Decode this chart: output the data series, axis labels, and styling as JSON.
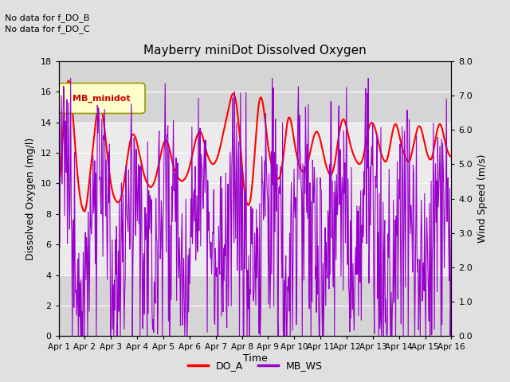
{
  "title": "Mayberry miniDot Dissolved Oxygen",
  "xlabel": "Time",
  "ylabel_left": "Dissolved Oxygen (mg/l)",
  "ylabel_right": "Wind Speed (m/s)",
  "annotation_lines": [
    "No data for f_DO_B",
    "No data for f_DO_C"
  ],
  "legend_label": "MB_minidot",
  "x_tick_labels": [
    "Apr 1",
    "Apr 2",
    "Apr 3",
    "Apr 4",
    "Apr 5",
    "Apr 6",
    "Apr 7",
    "Apr 8",
    "Apr 9",
    "Apr 10",
    "Apr 11",
    "Apr 12",
    "Apr 13",
    "Apr 14",
    "Apr 15",
    "Apr 16"
  ],
  "ylim_left": [
    0,
    18
  ],
  "ylim_right": [
    0.0,
    8.0
  ],
  "yticks_left": [
    0,
    2,
    4,
    6,
    8,
    10,
    12,
    14,
    16,
    18
  ],
  "yticks_right": [
    0.0,
    1.0,
    2.0,
    3.0,
    4.0,
    5.0,
    6.0,
    7.0,
    8.0
  ],
  "do_color": "#ff0000",
  "ws_color": "#9900cc",
  "do_linewidth": 1.5,
  "ws_linewidth": 0.8,
  "background_color": "#e0e0e0",
  "plot_bg_color": "#ebebeb",
  "legend_box_color": "#ffffcc",
  "legend_box_edge": "#999900",
  "legend_label_color": "#cc0000",
  "bottom_legend": [
    {
      "label": "DO_A",
      "color": "#ff0000"
    },
    {
      "label": "MB_WS",
      "color": "#9900cc"
    }
  ],
  "gray_band_lower": [
    0,
    4
  ],
  "gray_band_upper": [
    14,
    18
  ],
  "gray_band_color": "#cccccc",
  "do_data": [
    9.5,
    10.5,
    12.0,
    14.0,
    15.5,
    16.5,
    17.0,
    16.5,
    15.5,
    14.0,
    12.5,
    11.0,
    10.0,
    9.0,
    8.5,
    8.2,
    8.0,
    8.5,
    9.5,
    10.5,
    11.5,
    12.5,
    13.5,
    14.5,
    15.0,
    15.3,
    15.0,
    14.5,
    13.5,
    12.5,
    11.5,
    10.5,
    9.8,
    9.3,
    9.0,
    8.8,
    8.7,
    8.8,
    9.0,
    9.5,
    10.2,
    11.0,
    11.8,
    12.5,
    13.0,
    13.3,
    13.2,
    13.0,
    12.5,
    12.0,
    11.5,
    11.0,
    10.5,
    10.2,
    10.0,
    9.8,
    9.7,
    9.8,
    10.0,
    10.3,
    10.8,
    11.3,
    11.8,
    12.3,
    12.7,
    12.9,
    12.8,
    12.5,
    12.0,
    11.5,
    11.0,
    10.8,
    10.5,
    10.3,
    10.2,
    10.1,
    10.2,
    10.3,
    10.5,
    10.8,
    11.2,
    11.7,
    12.2,
    12.7,
    13.1,
    13.3,
    13.5,
    13.3,
    13.0,
    12.5,
    12.0,
    11.7,
    11.5,
    11.3,
    11.2,
    11.3,
    11.5,
    11.8,
    12.2,
    12.7,
    13.2,
    13.7,
    14.2,
    14.7,
    15.2,
    15.7,
    16.0,
    15.8,
    15.5,
    14.5,
    13.5,
    12.0,
    10.5,
    9.5,
    8.8,
    8.5,
    8.5,
    9.0,
    10.0,
    11.5,
    13.0,
    14.5,
    15.5,
    15.8,
    15.5,
    14.8,
    13.8,
    12.8,
    12.0,
    11.5,
    11.0,
    10.8,
    10.5,
    10.3,
    10.2,
    10.5,
    11.0,
    12.0,
    13.0,
    14.0,
    14.5,
    14.3,
    13.8,
    13.0,
    12.3,
    11.8,
    11.3,
    11.0,
    10.8,
    10.7,
    10.8,
    11.0,
    11.5,
    12.0,
    12.5,
    13.0,
    13.3,
    13.5,
    13.3,
    13.0,
    12.5,
    12.0,
    11.5,
    11.0,
    10.8,
    10.5,
    10.5,
    10.8,
    11.2,
    12.0,
    12.8,
    13.5,
    14.0,
    14.3,
    14.2,
    13.8,
    13.3,
    12.8,
    12.3,
    12.0,
    11.7,
    11.5,
    11.3,
    11.2,
    11.3,
    11.5,
    12.0,
    12.7,
    13.3,
    13.8,
    14.0,
    14.0,
    13.8,
    13.5,
    13.0,
    12.5,
    12.0,
    11.7,
    11.5,
    11.3,
    11.5,
    12.0,
    12.7,
    13.3,
    13.8,
    14.0,
    13.8,
    13.3,
    12.8,
    12.3,
    12.0,
    11.7,
    11.5,
    11.3,
    11.5,
    12.0,
    12.5,
    13.0,
    13.5,
    13.8,
    13.8,
    13.5,
    13.0,
    12.5,
    12.0,
    11.7,
    11.5,
    11.5,
    12.0,
    12.7,
    13.3,
    13.8,
    14.0,
    13.8,
    13.3,
    12.8,
    12.3,
    12.0,
    11.8,
    11.7
  ]
}
